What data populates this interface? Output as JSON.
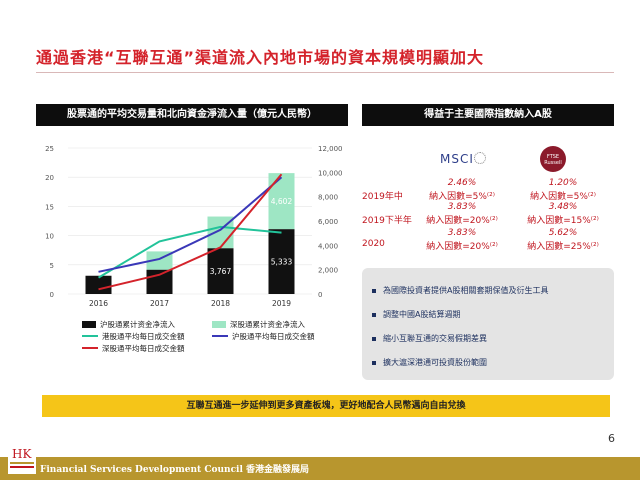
{
  "title": "通過香港“互聯互通”渠道流入內地市場的資本規模明顯加大",
  "left_panel": {
    "header": "股票通的平均交易量和北向資金淨流入量（億元人民幣）"
  },
  "right_panel": {
    "header": "得益于主要國際指數納入A股",
    "msci_label": "MSCI",
    "ftse_label": "FTSE Russell",
    "rows": [
      {
        "label": "2019年中",
        "msci_pct": "2.46%",
        "msci_factor": "納入因數=5%⁽²⁾",
        "ftse_pct": "1.20%",
        "ftse_factor": "納入因數=5%⁽²⁾"
      },
      {
        "label": "2019下半年",
        "msci_pct": "3.83%",
        "msci_factor": "納入因數=20%⁽²⁾",
        "ftse_pct": "3.48%",
        "ftse_factor": "納入因數=15%⁽²⁾"
      },
      {
        "label": "2020",
        "msci_pct": "3.83%",
        "msci_factor": "納入因數=20%⁽²⁾",
        "ftse_pct": "5.62%",
        "ftse_factor": "納入因數=25%⁽²⁾"
      }
    ],
    "bullets": [
      "為國際投資者提供A股相關套期保值及衍生工具",
      "調整中國A股結算週期",
      "縮小互聯互通的交易假期差異",
      "擴大滬深港通可投資股份範圍"
    ]
  },
  "banner": "互聯互通進一步延伸到更多資產板塊，更好地配合人民幣邁向自由兌換",
  "page_number": "6",
  "footer": "Financial Services Development Council  香港金融發展局",
  "logo_text": "HK",
  "colors": {
    "accent_red": "#d4232b",
    "banner": "#f5c518",
    "footer": "#b8962e"
  },
  "chart_data": {
    "type": "bar",
    "categories": [
      "2016",
      "2017",
      "2018",
      "2019"
    ],
    "y_left": {
      "ticks": [
        "0",
        "5",
        "10",
        "15",
        "20",
        "25"
      ],
      "ylim": [
        0,
        25
      ]
    },
    "y_right": {
      "ticks": [
        "0",
        "2,000",
        "4,000",
        "6,000",
        "8,000",
        "10,000",
        "12,000"
      ],
      "ylim": [
        0,
        12000
      ]
    },
    "bar_series": [
      {
        "name": "沪股通累计资金净流入",
        "color": "#111111",
        "values": [
          1500,
          2000,
          3767,
          5333
        ],
        "labels": [
          "",
          "",
          "3,767",
          "5,333"
        ]
      },
      {
        "name": "深股通累计资金净流入",
        "color": "#9ee6c4",
        "values": [
          0,
          1500,
          2600,
          4602
        ],
        "labels": [
          "",
          "",
          "",
          "4,602"
        ]
      }
    ],
    "line_series": [
      {
        "name": "港股通平均每日成交金額",
        "color": "#22c39a",
        "axis": "left",
        "values": [
          2.8,
          9.0,
          11.5,
          10.5
        ]
      },
      {
        "name": "沪股通平均每日成交金額",
        "color": "#3a38b8",
        "axis": "left",
        "values": [
          3.8,
          6.0,
          11.0,
          20.0
        ]
      },
      {
        "name": "深股通平均每日成交金額",
        "color": "#d4232b",
        "axis": "left",
        "values": [
          0.8,
          3.3,
          8.0,
          20.5
        ]
      }
    ]
  }
}
